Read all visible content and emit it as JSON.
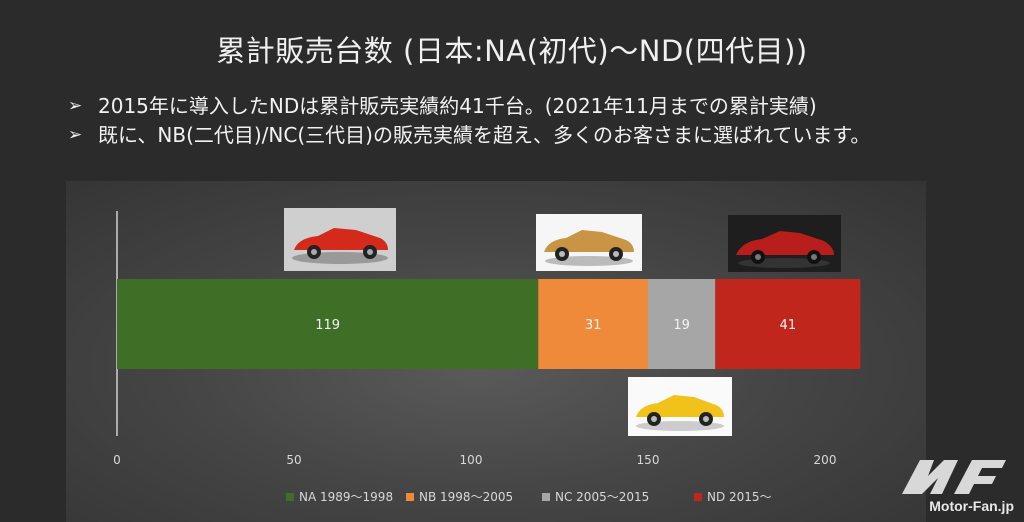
{
  "slide": {
    "title": "累計販売台数 (日本:NA(初代)〜ND(四代目))",
    "bullets": [
      "2015年に導入したNDは累計販売実績約41千台。(2021年11月までの累計実績)",
      "既に、NB(二代目)/NC(三代目)の販売実績を超え、多くのお客さまに選ばれています。"
    ]
  },
  "logo": {
    "text": "Motor-Fan.jp"
  },
  "images": [
    {
      "name": "na-car-photo",
      "icon": "red-na-roadster-photo"
    },
    {
      "name": "nb-car-photo",
      "icon": "gold-nb-roadster-photo"
    },
    {
      "name": "nc-car-photo",
      "icon": "yellow-nc-roadster-photo"
    },
    {
      "name": "nd-car-photo",
      "icon": "red-nd-roadster-photo"
    }
  ],
  "chart_data": {
    "type": "bar",
    "orientation": "horizontal",
    "stacked": true,
    "series": [
      {
        "name": "NA 1989〜1998",
        "value": 119,
        "color": "#3f6e27"
      },
      {
        "name": "NB 1998〜2005",
        "value": 31,
        "color": "#ee8a3a"
      },
      {
        "name": "NC 2005〜2015",
        "value": 19,
        "color": "#a6a6a6"
      },
      {
        "name": "ND 2015〜",
        "value": 41,
        "color": "#c0261c"
      }
    ],
    "xlim": [
      0,
      200
    ],
    "xticks": [
      0,
      50,
      100,
      150,
      200
    ],
    "legend_position": "bottom",
    "grid": false
  }
}
